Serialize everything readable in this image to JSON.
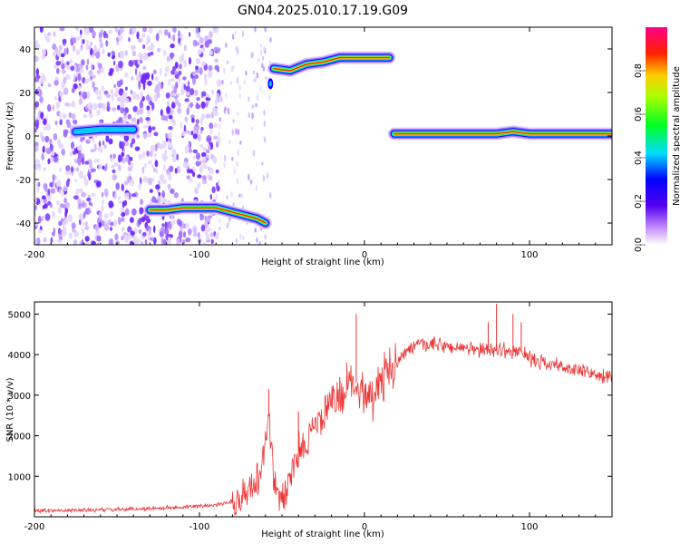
{
  "title": "GN04.2025.010.17.19.G09",
  "chart_data": [
    {
      "type": "heatmap",
      "xlabel": "Height of straight line (km)",
      "ylabel": "Frequency (Hz)",
      "xlim": [
        -200,
        150
      ],
      "ylim": [
        -50,
        50
      ],
      "xticks": [
        -200,
        -100,
        0,
        100
      ],
      "yticks": [
        -40,
        -20,
        0,
        20,
        40
      ],
      "colorbar": {
        "label": "Normalized spectral amplitude",
        "range": [
          0,
          1
        ],
        "ticks": [
          "0.0",
          "0.2",
          "0.4",
          "0.6",
          "0.8"
        ]
      },
      "ridges": [
        {
          "segment": "lower-left",
          "x": [
            -130,
            -120,
            -110,
            -100,
            -90,
            -80,
            -70,
            -65,
            -60
          ],
          "y": [
            -34,
            -34,
            -33,
            -33,
            -33,
            -35,
            -37,
            -38,
            -40
          ]
        },
        {
          "segment": "upper-middle",
          "x": [
            -55,
            -45,
            -35,
            -25,
            -15,
            -5,
            5,
            15
          ],
          "y": [
            31,
            30,
            33,
            34,
            36,
            36,
            36,
            36
          ]
        },
        {
          "segment": "right",
          "x": [
            18,
            40,
            60,
            80,
            90,
            100,
            120,
            150
          ],
          "y": [
            1,
            1,
            1,
            1,
            2,
            1,
            1,
            1
          ]
        },
        {
          "segment": "left-zero",
          "x": [
            -175,
            -160,
            -150,
            -140
          ],
          "y": [
            2,
            3,
            3,
            3
          ]
        }
      ]
    },
    {
      "type": "line",
      "xlabel": "Height of straight line (km)",
      "ylabel": "SNR (10 * v/v)",
      "xlim": [
        -200,
        150
      ],
      "ylim": [
        0,
        5300
      ],
      "xticks": [
        -200,
        -100,
        0,
        100
      ],
      "yticks": [
        1000,
        2000,
        3000,
        4000,
        5000
      ],
      "series": [
        {
          "x": [
            -200,
            -180,
            -160,
            -140,
            -120,
            -100,
            -90,
            -80,
            -75,
            -70,
            -65,
            -60,
            -58,
            -55,
            -50,
            -45,
            -40,
            -35,
            -30,
            -25,
            -20,
            -15,
            -10,
            -5,
            0,
            5,
            10,
            15,
            20,
            30,
            40,
            50,
            60,
            70,
            80,
            90,
            95,
            100,
            110,
            120,
            130,
            140,
            150
          ],
          "y": [
            150,
            160,
            170,
            190,
            220,
            260,
            300,
            380,
            500,
            650,
            900,
            1800,
            2500,
            900,
            400,
            900,
            1600,
            1900,
            2200,
            2500,
            2800,
            3000,
            3200,
            3300,
            3100,
            3000,
            3300,
            3600,
            3900,
            4200,
            4250,
            4200,
            4150,
            4100,
            4150,
            4050,
            4100,
            3900,
            3800,
            3700,
            3600,
            3500,
            3400
          ],
          "color": "#ee3333"
        }
      ],
      "spikes": [
        [
          -58,
          3150
        ],
        [
          -40,
          2600
        ],
        [
          -15,
          3450
        ],
        [
          -5,
          5000
        ],
        [
          80,
          5250
        ],
        [
          75,
          4800
        ],
        [
          90,
          5000
        ],
        [
          95,
          4800
        ]
      ]
    }
  ]
}
